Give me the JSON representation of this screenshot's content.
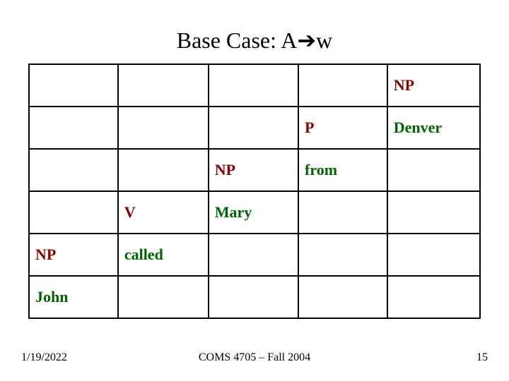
{
  "title": {
    "prefix": "Base Case: A",
    "arrow": "➔",
    "suffix": "w"
  },
  "table": {
    "rows": [
      [
        "",
        "",
        "",
        "",
        "NP"
      ],
      [
        "",
        "",
        "",
        "P",
        "Denver"
      ],
      [
        "",
        "",
        "NP",
        "from",
        ""
      ],
      [
        "",
        "V",
        "Mary",
        "",
        ""
      ],
      [
        "NP",
        "called",
        "",
        "",
        ""
      ],
      [
        "John",
        "",
        "",
        "",
        ""
      ]
    ],
    "classes": [
      [
        "",
        "",
        "",
        "",
        "nonterm"
      ],
      [
        "",
        "",
        "",
        "nonterm",
        "term"
      ],
      [
        "",
        "",
        "nonterm",
        "term",
        ""
      ],
      [
        "",
        "nonterm",
        "term",
        "",
        ""
      ],
      [
        "nonterm",
        "term",
        "",
        "",
        ""
      ],
      [
        "term",
        "",
        "",
        "",
        ""
      ]
    ]
  },
  "footer": {
    "date": "1/19/2022",
    "center": "COMS 4705 – Fall 2004",
    "page": "15"
  }
}
